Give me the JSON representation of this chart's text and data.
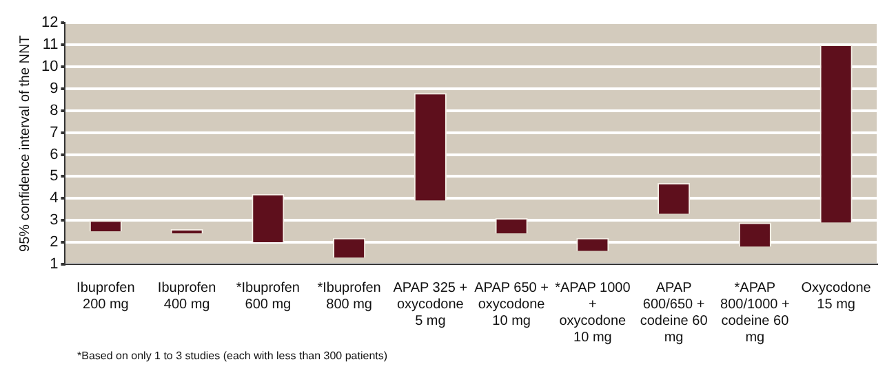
{
  "chart_data": {
    "type": "bar",
    "ylabel": "95% confidence interval of the NNT",
    "categories": [
      "Ibuprofen 200 mg",
      "Ibuprofen 400 mg",
      "*Ibuprofen 600 mg",
      "*Ibuprofen 800 mg",
      "APAP 325 + oxycodone 5 mg",
      "APAP 650 + oxycodone 10 mg",
      "*APAP 1000 + oxycodone 10 mg",
      "APAP 600/650 + codeine 60 mg",
      "*APAP 800/1000 + codeine 60 mg",
      "Oxycodone 15 mg"
    ],
    "base": [
      2.5,
      2.4,
      2.0,
      1.3,
      3.9,
      2.4,
      1.6,
      3.3,
      1.8,
      2.9
    ],
    "values": [
      0.5,
      0.2,
      2.2,
      0.9,
      4.9,
      0.7,
      0.6,
      1.4,
      1.1,
      8.1
    ],
    "color": "#5e0f1c",
    "ylim": [
      1,
      12
    ],
    "yticks": [
      1,
      2,
      3,
      4,
      5,
      6,
      7,
      8,
      9,
      10,
      11,
      12
    ],
    "grid": "y",
    "legend": false,
    "annotations": [
      "*Based on only 1 to 3 studies (each with less than 300 patients)"
    ]
  }
}
